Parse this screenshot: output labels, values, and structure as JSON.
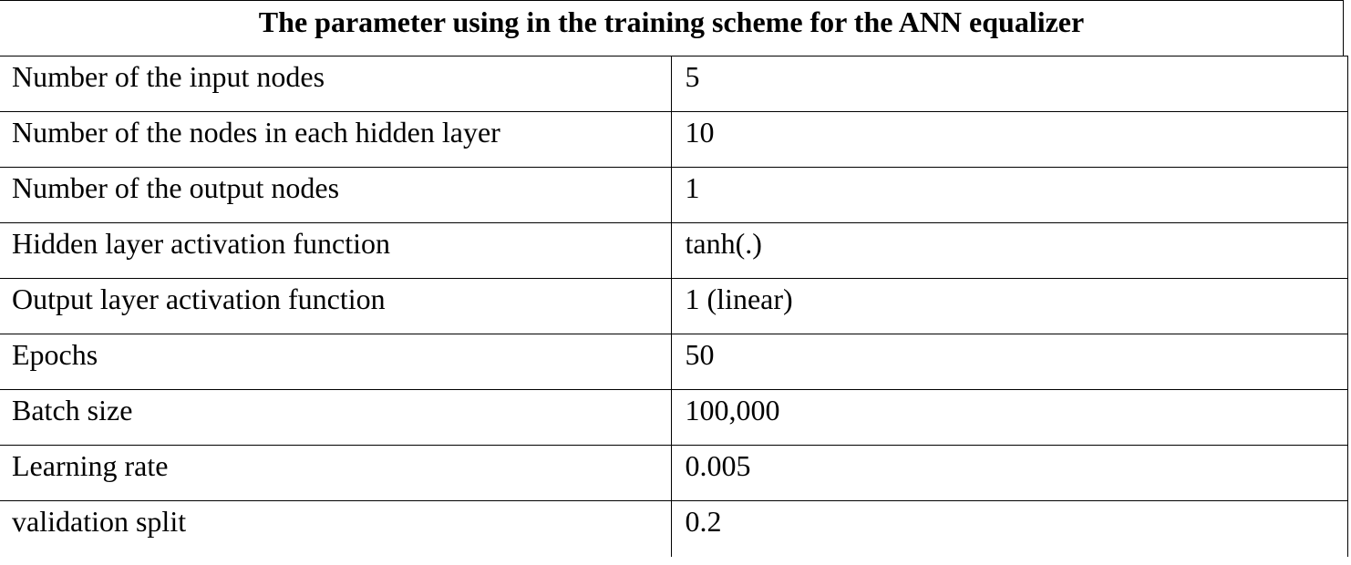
{
  "table": {
    "caption": "The parameter using in the training scheme for the ANN equalizer",
    "rows": [
      {
        "parameter": "Number of the input nodes",
        "value": "5"
      },
      {
        "parameter": "Number of the nodes in each hidden layer",
        "value": "10"
      },
      {
        "parameter": "Number of the output nodes",
        "value": "1"
      },
      {
        "parameter": "Hidden layer activation function",
        "value": "tanh(.)"
      },
      {
        "parameter": "Output layer activation function",
        "value": "1 (linear)"
      },
      {
        "parameter": "Epochs",
        "value": "50"
      },
      {
        "parameter": "Batch size",
        "value": "100,000"
      },
      {
        "parameter": "Learning rate",
        "value": "0.005"
      },
      {
        "parameter": "validation split",
        "value": "0.2"
      }
    ]
  }
}
